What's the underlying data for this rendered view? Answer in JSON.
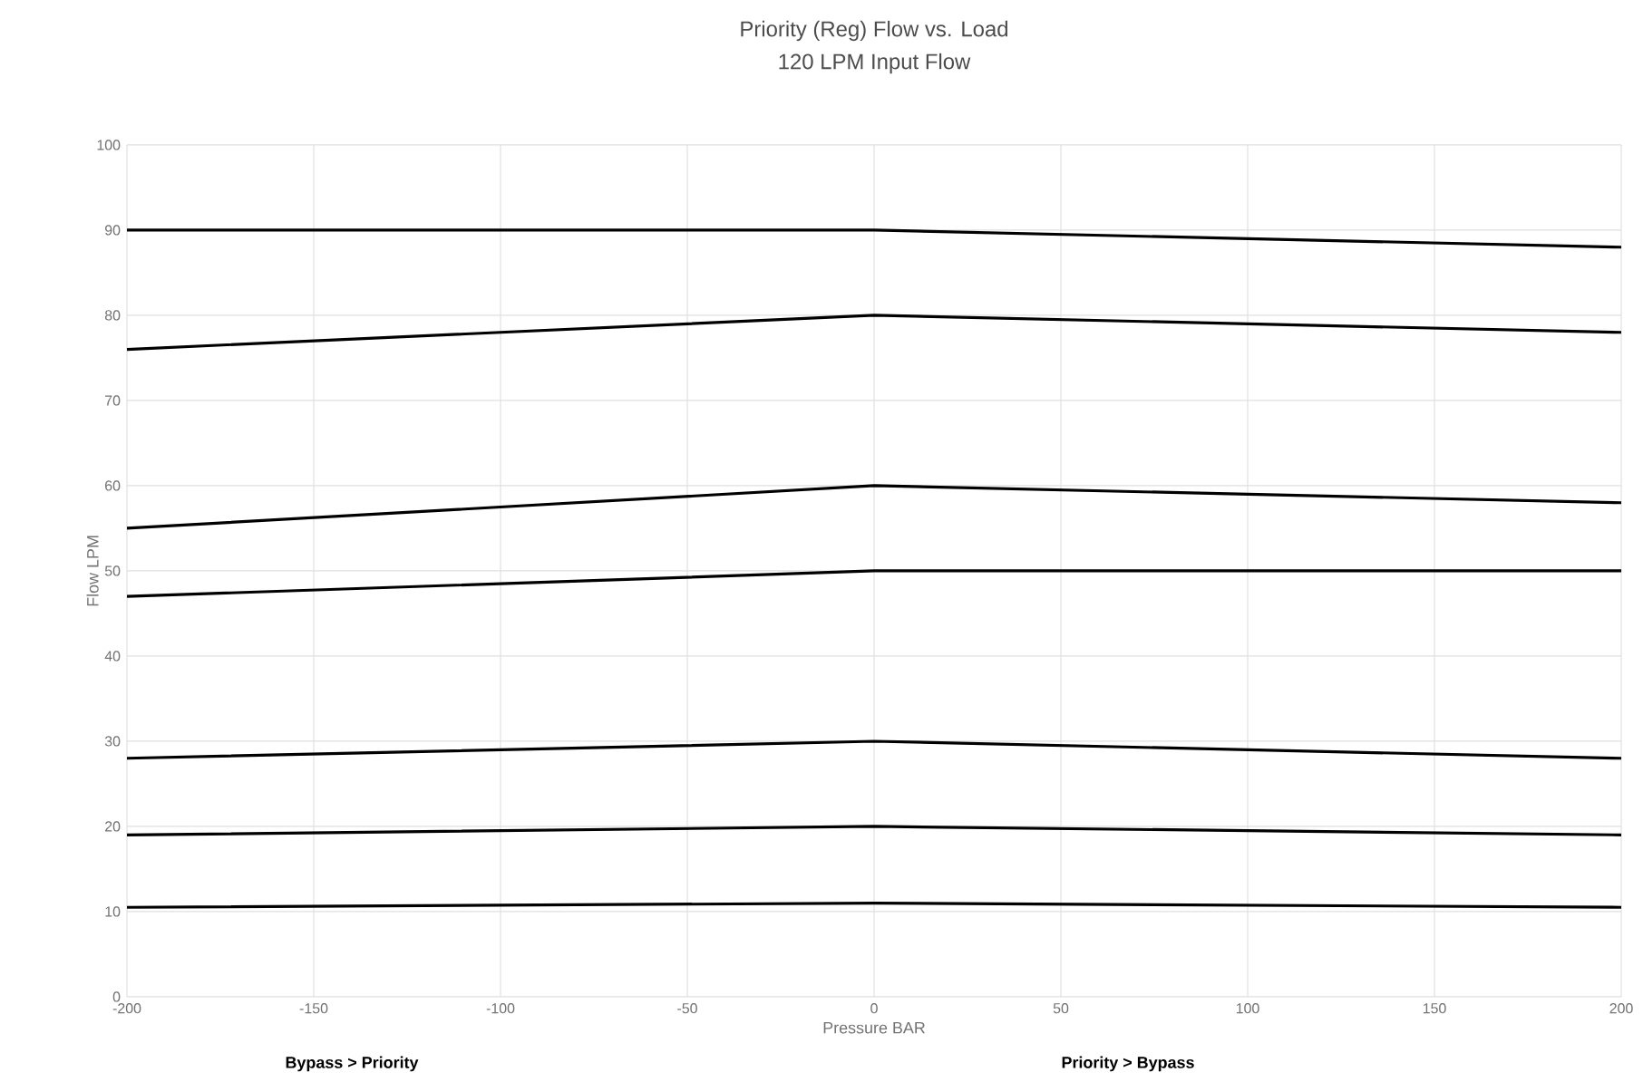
{
  "chart_data": {
    "type": "line",
    "title": "Priority (Reg) Flow vs. Load",
    "subtitle": "120 LPM Input Flow",
    "xlabel": "Pressure BAR",
    "ylabel": "Flow LPM",
    "annotations": [
      "Bypass > Priority",
      "Priority > Bypass"
    ],
    "x": [
      -200,
      0,
      200
    ],
    "series": [
      {
        "color": "#000000",
        "values": [
          90,
          90,
          88
        ]
      },
      {
        "color": "#000000",
        "values": [
          76,
          80,
          78
        ]
      },
      {
        "color": "#000000",
        "values": [
          55,
          60,
          58
        ]
      },
      {
        "color": "#000000",
        "values": [
          47,
          50,
          50
        ]
      },
      {
        "color": "#000000",
        "values": [
          28,
          30,
          28
        ]
      },
      {
        "color": "#000000",
        "values": [
          19,
          20,
          19
        ]
      },
      {
        "color": "#000000",
        "values": [
          10.5,
          11,
          10.5
        ]
      }
    ],
    "xlim": [
      -200,
      200
    ],
    "ylim": [
      0,
      100
    ],
    "xticks": [
      -200,
      -150,
      -100,
      -50,
      0,
      50,
      100,
      150,
      200
    ],
    "yticks": [
      0,
      10,
      20,
      30,
      40,
      50,
      60,
      70,
      80,
      90,
      100
    ],
    "grid": true,
    "marker": "none",
    "line_style": "solid"
  }
}
